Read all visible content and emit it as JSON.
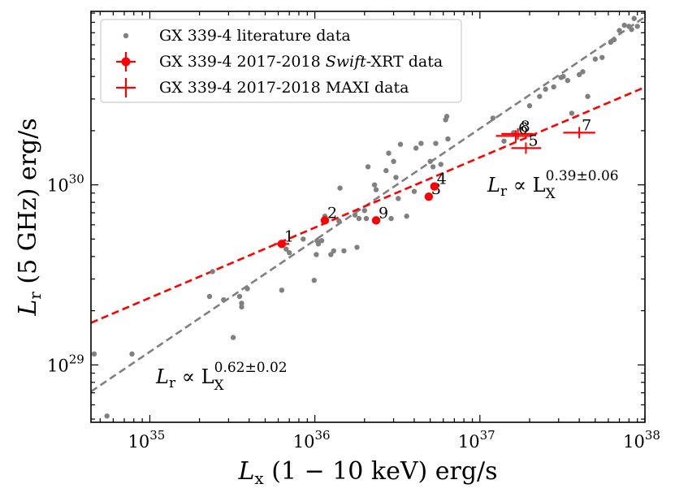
{
  "chart_data": {
    "type": "scatter",
    "title": "",
    "xlabel": {
      "main": "L",
      "sub": "x",
      "rest": " (1 − 10 keV) erg/s"
    },
    "ylabel": {
      "main": "L",
      "sub": "r",
      "rest": " (5 GHz) erg/s"
    },
    "xscale": "log",
    "yscale": "log",
    "xlim": [
      4.4e+34,
      1e+38
    ],
    "ylim": [
      4.8e+28,
      9.2e+30
    ],
    "x_ticks": [
      {
        "value": 1e+35,
        "base": "10",
        "exp": "35"
      },
      {
        "value": 1e+36,
        "base": "10",
        "exp": "36"
      },
      {
        "value": 1e+37,
        "base": "10",
        "exp": "37"
      },
      {
        "value": 1e+38,
        "base": "10",
        "exp": "38"
      }
    ],
    "y_ticks": [
      {
        "value": 1e+29,
        "base": "10",
        "exp": "29"
      },
      {
        "value": 1e+30,
        "base": "10",
        "exp": "30"
      }
    ],
    "legend": {
      "position": "top-left",
      "entries": [
        {
          "label": "GX 339-4 literature data",
          "marker": "dot",
          "color": "#808080"
        },
        {
          "label_pre": "GX 339-4 2017-2018 ",
          "label_em": "Swift",
          "label_post": "-XRT data",
          "marker": "errorbar-dot",
          "color": "#ff0000"
        },
        {
          "label": "GX 339-4 2017-2018 MAXI data",
          "marker": "errorbar",
          "color": "#ff0000"
        }
      ]
    },
    "series": [
      {
        "name": "GX 339-4 literature data",
        "color": "#808080",
        "points": [
          [
            4.6e+34,
            1.15e+29
          ],
          [
            5.5e+34,
            5.2e+28
          ],
          [
            7.8e+34,
            1.15e+29
          ],
          [
            2.3e+35,
            2.4e+29
          ],
          [
            2.4e+35,
            3.3e+29
          ],
          [
            2.8e+35,
            2.3e+29
          ],
          [
            3.2e+35,
            1.42e+29
          ],
          [
            3.5e+35,
            2.4e+29
          ],
          [
            3.6e+35,
            2.2e+29
          ],
          [
            3.6e+35,
            2.1e+29
          ],
          [
            3.9e+35,
            2.65e+29
          ],
          [
            6.3e+35,
            2.6e+29
          ],
          [
            6.7e+35,
            4.4e+29
          ],
          [
            7e+35,
            4.2e+29
          ],
          [
            8.5e+35,
            5e+29
          ],
          [
            9.9e+35,
            2.95e+29
          ],
          [
            1.02e+36,
            4.1e+29
          ],
          [
            1.03e+36,
            4.9e+29
          ],
          [
            1.05e+36,
            4.7e+29
          ],
          [
            1.1e+36,
            4.9e+29
          ],
          [
            1.15e+36,
            6.7e+29
          ],
          [
            1.25e+36,
            4.1e+29
          ],
          [
            1.3e+36,
            4.3e+29
          ],
          [
            1.4e+36,
            6.3e+29
          ],
          [
            1.42e+36,
            9.6e+29
          ],
          [
            1.5e+36,
            4.3e+29
          ],
          [
            1.75e+36,
            6.8e+29
          ],
          [
            1.8e+36,
            4.5e+29
          ],
          [
            1.85e+36,
            6.5e+29
          ],
          [
            2e+36,
            7.2e+29
          ],
          [
            2.05e+36,
            6.5e+29
          ],
          [
            2.1e+36,
            1.26e+30
          ],
          [
            2.3e+36,
            1e+30
          ],
          [
            2.35e+36,
            9.4e+29
          ],
          [
            2.4e+36,
            6.4e+29
          ],
          [
            2.7e+36,
            1.2e+30
          ],
          [
            2.8e+36,
            1.5e+30
          ],
          [
            2.9e+36,
            6.5e+29
          ],
          [
            3e+36,
            1.35e+30
          ],
          [
            3.1e+36,
            1.1e+30
          ],
          [
            3.2e+36,
            8.4e+29
          ],
          [
            3.3e+36,
            1.68e+30
          ],
          [
            3.6e+36,
            6.7e+29
          ],
          [
            4e+36,
            9.2e+29
          ],
          [
            4.1e+36,
            1.6e+30
          ],
          [
            4.4e+36,
            1.7e+30
          ],
          [
            5e+36,
            1.35e+30
          ],
          [
            5.2e+36,
            1.26e+30
          ],
          [
            5.4e+36,
            1.7e+30
          ],
          [
            5.8e+36,
            1.3e+30
          ],
          [
            6.2e+36,
            2.3e+30
          ],
          [
            6.3e+36,
            2.4e+30
          ],
          [
            6.4e+36,
            1.8e+30
          ],
          [
            1.2e+37,
            2.35e+30
          ],
          [
            1.4e+37,
            1.75e+30
          ],
          [
            1.6e+37,
            1.95e+30
          ],
          [
            2e+37,
            2.75e+30
          ],
          [
            2.3e+37,
            3.1e+30
          ],
          [
            2.5e+37,
            3.4e+30
          ],
          [
            2.8e+37,
            3.5e+30
          ],
          [
            3.1e+37,
            3.95e+30
          ],
          [
            3.2e+37,
            4e+30
          ],
          [
            3.4e+37,
            3.8e+30
          ],
          [
            3.6e+37,
            2.5e+30
          ],
          [
            4e+37,
            4.1e+30
          ],
          [
            4.2e+37,
            4.25e+30
          ],
          [
            4.5e+37,
            3.1e+30
          ],
          [
            5e+37,
            5e+30
          ],
          [
            5.5e+37,
            5.1e+30
          ],
          [
            6.2e+37,
            6.2e+30
          ],
          [
            6.5e+37,
            6.4e+30
          ],
          [
            7e+37,
            7.2e+30
          ],
          [
            7.5e+37,
            7.7e+30
          ],
          [
            8e+37,
            7.6e+30
          ],
          [
            8.3e+37,
            7.3e+30
          ],
          [
            8.6e+37,
            8.4e+30
          ],
          [
            9e+37,
            7.6e+30
          ]
        ]
      },
      {
        "name": "GX 339-4 2017-2018 Swift-XRT data",
        "color": "#ff0000",
        "points": [
          {
            "label": "1",
            "x": 6.3e+35,
            "y": 4.7e+29,
            "xerr": [
              5.7e+35,
              7e+35
            ]
          },
          {
            "label": "2",
            "x": 1.15e+36,
            "y": 6.35e+29
          },
          {
            "label": "9",
            "x": 2.35e+36,
            "y": 6.35e+29
          },
          {
            "label": "3",
            "x": 4.9e+36,
            "y": 8.6e+29
          },
          {
            "label": "4",
            "x": 5.3e+36,
            "y": 9.8e+29
          }
        ]
      },
      {
        "name": "GX 339-4 2017-2018 MAXI data",
        "color": "#ff0000",
        "points": [
          {
            "label": "8",
            "x": 1.7e+37,
            "y": 1.92e+30,
            "xerr": [
              1.35e+37,
              2.1e+37
            ]
          },
          {
            "label": "6",
            "x": 1.65e+37,
            "y": 1.87e+30,
            "xerr": [
              1.25e+37,
              2.05e+37
            ]
          },
          {
            "label": "5",
            "x": 1.9e+37,
            "y": 1.6e+30,
            "xerr": [
              1.55e+37,
              2.35e+37
            ]
          },
          {
            "label": "7",
            "x": 4e+37,
            "y": 1.95e+30,
            "xerr": [
              3.2e+37,
              5e+37
            ]
          }
        ]
      }
    ],
    "fits": [
      {
        "name": "literature-fit",
        "color": "#808080",
        "style": "dashed",
        "slope": 0.62,
        "anchor": [
          1e+36,
          4.93e+29
        ],
        "annotation": {
          "pre": "L",
          "sub": "r",
          "mid": " ∝ L",
          "sub2": "X",
          "sup": "0.62±0.02",
          "x": 1e+35,
          "y": 8.8e+28
        }
      },
      {
        "name": "new-data-fit",
        "color": "#ff0000",
        "style": "dashed",
        "slope": 0.39,
        "anchor": [
          1e+36,
          5.79e+29
        ],
        "annotation": {
          "pre": "L",
          "sub": "r",
          "mid": " ∝ L",
          "sub2": "X",
          "sup": "0.39±0.06",
          "x": 1.2e+37,
          "y": 1.05e+30
        }
      }
    ]
  }
}
